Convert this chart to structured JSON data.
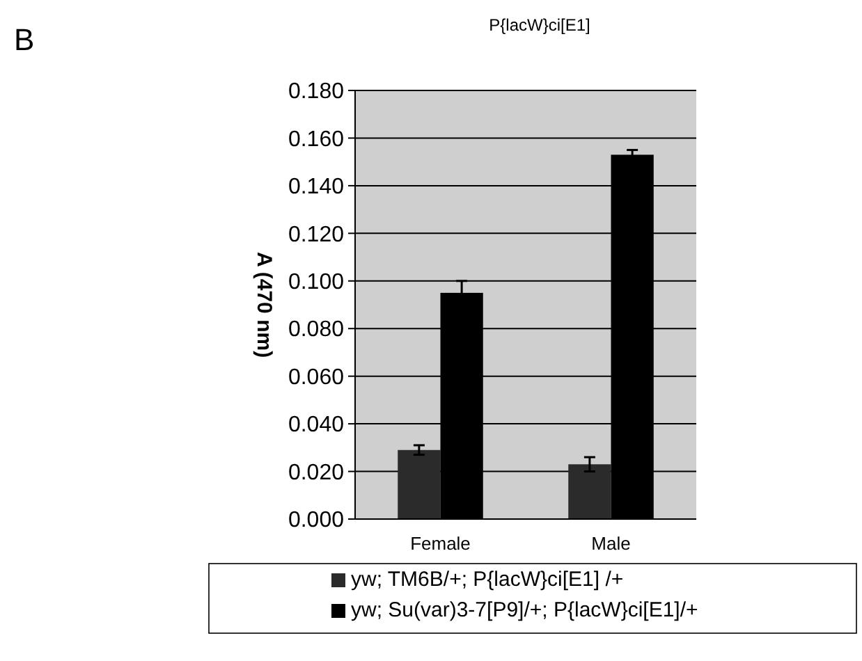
{
  "chart_data": {
    "type": "bar",
    "title": "P{lacW}ci[E1]",
    "ylabel": "A (470 nm)",
    "annotations": [
      "B"
    ],
    "categories": [
      "Female",
      "Male"
    ],
    "series": [
      {
        "name": "yw; TM6B/+; P{lacW}ci[E1] /+",
        "color": "#2b2b2b",
        "values": [
          0.029,
          0.023
        ],
        "errors": [
          0.002,
          0.003
        ]
      },
      {
        "name": "yw; Su(var)3-7[P9]/+; P{lacW}ci[E1]/+",
        "color": "#000000",
        "values": [
          0.095,
          0.153
        ],
        "errors": [
          0.005,
          0.002
        ]
      }
    ],
    "ylim": [
      0,
      0.18
    ],
    "yticks": [
      {
        "value": 0,
        "label": "0.000"
      },
      {
        "value": 0.02,
        "label": "0.020"
      },
      {
        "value": 0.04,
        "label": "0.040"
      },
      {
        "value": 0.06,
        "label": "0.060"
      },
      {
        "value": 0.08,
        "label": "0.080"
      },
      {
        "value": 0.1,
        "label": "0.100"
      },
      {
        "value": 0.12,
        "label": "0.120"
      },
      {
        "value": 0.14,
        "label": "0.140"
      },
      {
        "value": 0.16,
        "label": "0.160"
      },
      {
        "value": 0.18,
        "label": "0.180"
      }
    ],
    "grid": "y",
    "legend": "bottom"
  }
}
